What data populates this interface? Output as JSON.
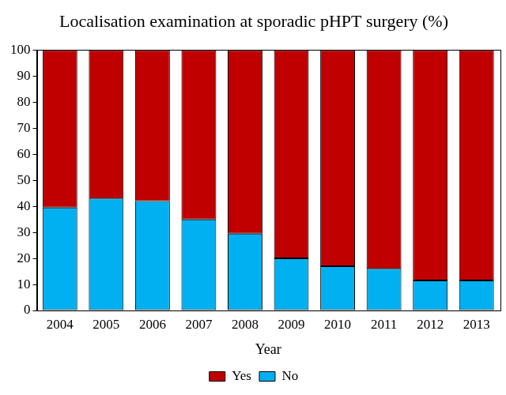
{
  "chart_data": {
    "type": "bar",
    "title": "Localisation examination at sporadic pHPT surgery (%)",
    "x_label": "Year",
    "categories": [
      "2004",
      "2005",
      "2006",
      "2007",
      "2008",
      "2009",
      "2010",
      "2011",
      "2012",
      "2013"
    ],
    "series": [
      {
        "name": "Yes",
        "color": "#c00000",
        "values": [
          60.5,
          57,
          58,
          65,
          70.5,
          80,
          83,
          84,
          88.5,
          88.5
        ]
      },
      {
        "name": "No",
        "color": "#00b0f0",
        "values": [
          39.5,
          43,
          42,
          35,
          29.5,
          20,
          17,
          16,
          11.5,
          11.5
        ]
      }
    ],
    "ylim": [
      0,
      100
    ],
    "yticks": [
      0,
      10,
      20,
      30,
      40,
      50,
      60,
      70,
      80,
      90,
      100
    ],
    "stacked": true,
    "grid": false,
    "legend": "bottom"
  }
}
